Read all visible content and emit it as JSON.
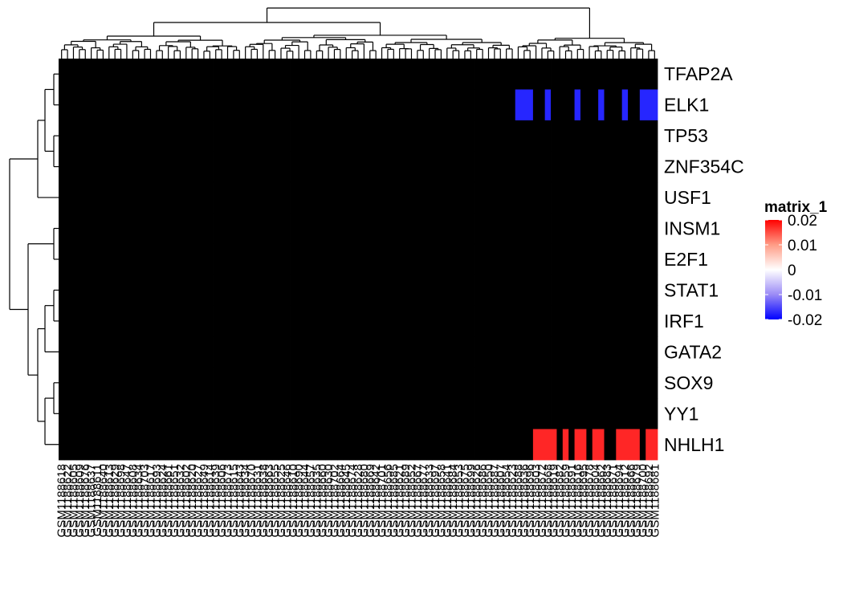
{
  "chart_data": {
    "type": "heatmap",
    "rows": [
      "TFAP2A",
      "ELK1",
      "TP53",
      "ZNF354C",
      "USF1",
      "INSM1",
      "E2F1",
      "STAT1",
      "IRF1",
      "GATA2",
      "SOX9",
      "YY1",
      "NHLH1"
    ],
    "n_columns": 101,
    "column_labels": [
      "GSM1188618",
      "GSM1188622",
      "GSM1188605",
      "GSM1188609",
      "GSM1188676",
      "GSM1188637",
      "GSM1188611",
      "GSM1188640",
      "GSM1188613",
      "GSM1188629",
      "GSM1188698",
      "GSM1188647",
      "GSM1188608",
      "GSM1188634",
      "GSM1188703",
      "GSM1188617",
      "GSM1188693",
      "GSM1188624",
      "GSM1188661",
      "GSM1188651",
      "GSM1188632",
      "GSM1188602",
      "GSM1188620",
      "GSM1188627",
      "GSM1188649",
      "GSM1188614",
      "GSM1188639",
      "GSM1188606",
      "GSM1188673",
      "GSM1188615",
      "GSM1188643",
      "GSM1188634",
      "GSM1188670",
      "GSM1188631",
      "GSM1188638",
      "GSM1188663",
      "GSM1188655",
      "GSM1188625",
      "GSM1188646",
      "GSM1188610",
      "GSM1188690",
      "GSM1188644",
      "GSM1188657",
      "GSM1188635",
      "GSM1188660",
      "GSM1188630",
      "GSM1188702",
      "GSM1188664",
      "GSM1188645",
      "GSM1188674",
      "GSM1188628",
      "GSM1188680",
      "GSM1188669",
      "GSM1188642",
      "GSM1188701",
      "GSM1188656",
      "GSM1188685",
      "GSM1188621",
      "GSM1188689",
      "GSM1188652",
      "GSM1188667",
      "GSM1188677",
      "GSM1188633",
      "GSM1188697",
      "GSM1188658",
      "GSM1188641",
      "GSM1188684",
      "GSM1188653",
      "GSM1188675",
      "GSM1188699",
      "GSM1188626",
      "GSM1188686",
      "GSM1188650",
      "GSM1188687",
      "GSM1188607",
      "GSM1188654",
      "GSM1188623",
      "GSM1188688",
      "GSM1188636",
      "GSM1188696",
      "GSM1188603",
      "GSM1188672",
      "GSM1188668",
      "GSM1188619",
      "GSM1188682",
      "GSM1188659",
      "GSM1188691",
      "GSM1188616",
      "GSM1188695",
      "GSM1188678",
      "GSM1188604",
      "GSM1188662",
      "GSM1188683",
      "GSM1188671",
      "GSM1188694",
      "GSM1188612",
      "GSM1188666",
      "GSM1188679",
      "GSM1188700",
      "GSM1188692",
      "GSM1188681"
    ],
    "cluster_segments": [
      {
        "rows": [
          "TFAP2A",
          "ELK1",
          "TP53",
          "ZNF354C",
          "USF1"
        ],
        "sections": [
          [
            0.2,
            -0.3
          ],
          [
            0.8,
            -0.3
          ],
          [
            0.3,
            -0.9
          ]
        ]
      },
      {
        "rows": [
          "INSM1",
          "E2F1",
          "STAT1",
          "IRF1",
          "GATA2",
          "SOX9",
          "YY1",
          "NHLH1"
        ],
        "sections": [
          [
            0.2,
            -0.3
          ],
          [
            -0.2,
            -0.5
          ],
          [
            -0.6,
            0.85
          ]
        ]
      }
    ],
    "column_sections": [
      0,
      31,
      77,
      101
    ],
    "color_scale": {
      "min": -0.02,
      "mid": 0,
      "max": 0.02,
      "low": "#0000ff",
      "mid_color": "#ffffff",
      "high": "#ff0000"
    },
    "grid": false,
    "legend": {
      "title": "matrix_1",
      "ticks": [
        "0.02",
        "0.01",
        "0",
        "-0.01",
        "-0.02"
      ],
      "tick_values": [
        0.02,
        0.01,
        0,
        -0.01,
        -0.02
      ]
    },
    "row_dendrogram": true,
    "column_dendrogram": true
  }
}
